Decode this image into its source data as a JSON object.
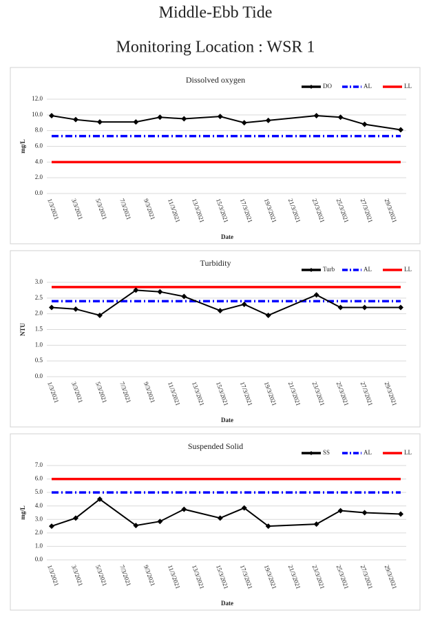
{
  "header": {
    "title": "Middle-Ebb Tide",
    "subtitle": "Monitoring Location : WSR 1"
  },
  "chart_data": [
    {
      "type": "line",
      "title": "Dissolved oxygen",
      "x_label": "Date",
      "y_label": "mg/L",
      "x": [
        "1/3/2021",
        "3/3/2021",
        "5/3/2021",
        "8/3/2021",
        "10/3/2021",
        "12/3/2021",
        "15/3/2021",
        "17/3/2021",
        "19/3/2021",
        "23/3/2021",
        "25/3/2021",
        "27/3/2021",
        "30/3/2021"
      ],
      "xlim": [
        "1/3/2021",
        "30/3/2021"
      ],
      "xticks": [
        "1/3/2021",
        "3/3/2021",
        "5/3/2021",
        "7/3/2021",
        "9/3/2021",
        "11/3/2021",
        "13/3/2021",
        "15/3/2021",
        "17/3/2021",
        "19/3/2021",
        "21/3/2021",
        "23/3/2021",
        "25/3/2021",
        "27/3/2021",
        "29/3/2021"
      ],
      "ylim": [
        0,
        12
      ],
      "yticks": [
        {
          "value": 0,
          "label": "0.0"
        },
        {
          "value": 2,
          "label": "2.0"
        },
        {
          "value": 4,
          "label": "4.0"
        },
        {
          "value": 6,
          "label": "6.0"
        },
        {
          "value": 8,
          "label": "8.0"
        },
        {
          "value": 10,
          "label": "10.0"
        },
        {
          "value": 12,
          "label": "12.0"
        }
      ],
      "grid": true,
      "legend": "top-right",
      "series": [
        {
          "name": "DO",
          "color": "#000000",
          "line_style": "solid",
          "marker": "diamond",
          "values": [
            9.9,
            9.4,
            9.1,
            9.1,
            9.7,
            9.5,
            9.8,
            9.0,
            9.3,
            9.9,
            9.7,
            8.8,
            8.1
          ]
        },
        {
          "name": "AL",
          "color": "#0000ff",
          "line_style": "dashdot",
          "marker": "none",
          "values": [
            7.3,
            7.3,
            7.3,
            7.3,
            7.3,
            7.3,
            7.3,
            7.3,
            7.3,
            7.3,
            7.3,
            7.3,
            7.3
          ]
        },
        {
          "name": "LL",
          "color": "#ff0000",
          "line_style": "solid",
          "marker": "none",
          "values": [
            4.0,
            4.0,
            4.0,
            4.0,
            4.0,
            4.0,
            4.0,
            4.0,
            4.0,
            4.0,
            4.0,
            4.0,
            4.0
          ]
        }
      ]
    },
    {
      "type": "line",
      "title": "Turbidity",
      "x_label": "Date",
      "y_label": "NTU",
      "x": [
        "1/3/2021",
        "3/3/2021",
        "5/3/2021",
        "8/3/2021",
        "10/3/2021",
        "12/3/2021",
        "15/3/2021",
        "17/3/2021",
        "19/3/2021",
        "23/3/2021",
        "25/3/2021",
        "27/3/2021",
        "30/3/2021"
      ],
      "xlim": [
        "1/3/2021",
        "30/3/2021"
      ],
      "xticks": [
        "1/3/2021",
        "3/3/2021",
        "5/3/2021",
        "7/3/2021",
        "9/3/2021",
        "11/3/2021",
        "13/3/2021",
        "15/3/2021",
        "17/3/2021",
        "19/3/2021",
        "21/3/2021",
        "23/3/2021",
        "25/3/2021",
        "27/3/2021",
        "29/3/2021"
      ],
      "ylim": [
        0,
        3
      ],
      "yticks": [
        {
          "value": 0,
          "label": "0.0"
        },
        {
          "value": 0.5,
          "label": "0.5"
        },
        {
          "value": 1,
          "label": "1.0"
        },
        {
          "value": 1.5,
          "label": "1.5"
        },
        {
          "value": 2,
          "label": "2.0"
        },
        {
          "value": 2.5,
          "label": "2.5"
        },
        {
          "value": 3,
          "label": "3.0"
        }
      ],
      "grid": true,
      "legend": "top-right",
      "series": [
        {
          "name": "Turb",
          "color": "#000000",
          "line_style": "solid",
          "marker": "diamond",
          "values": [
            2.2,
            2.15,
            1.95,
            2.75,
            2.7,
            2.55,
            2.1,
            2.3,
            1.95,
            2.6,
            2.2,
            2.2,
            2.2
          ]
        },
        {
          "name": "AL",
          "color": "#0000ff",
          "line_style": "dashdot",
          "marker": "none",
          "values": [
            2.4,
            2.4,
            2.4,
            2.4,
            2.4,
            2.4,
            2.4,
            2.4,
            2.4,
            2.4,
            2.4,
            2.4,
            2.4
          ]
        },
        {
          "name": "LL",
          "color": "#ff0000",
          "line_style": "solid",
          "marker": "none",
          "values": [
            2.85,
            2.85,
            2.85,
            2.85,
            2.85,
            2.85,
            2.85,
            2.85,
            2.85,
            2.85,
            2.85,
            2.85,
            2.85
          ]
        }
      ]
    },
    {
      "type": "line",
      "title": "Suspended Solid",
      "x_label": "Date",
      "y_label": "mg/L",
      "x": [
        "1/3/2021",
        "3/3/2021",
        "5/3/2021",
        "8/3/2021",
        "10/3/2021",
        "12/3/2021",
        "15/3/2021",
        "17/3/2021",
        "19/3/2021",
        "23/3/2021",
        "25/3/2021",
        "27/3/2021",
        "30/3/2021"
      ],
      "xlim": [
        "1/3/2021",
        "30/3/2021"
      ],
      "xticks": [
        "1/3/2021",
        "3/3/2021",
        "5/3/2021",
        "7/3/2021",
        "9/3/2021",
        "11/3/2021",
        "13/3/2021",
        "15/3/2021",
        "17/3/2021",
        "19/3/2021",
        "21/3/2021",
        "23/3/2021",
        "25/3/2021",
        "27/3/2021",
        "29/3/2021"
      ],
      "ylim": [
        0,
        7
      ],
      "yticks": [
        {
          "value": 0,
          "label": "0.0"
        },
        {
          "value": 1,
          "label": "1.0"
        },
        {
          "value": 2,
          "label": "2.0"
        },
        {
          "value": 3,
          "label": "3.0"
        },
        {
          "value": 4,
          "label": "4.0"
        },
        {
          "value": 5,
          "label": "5.0"
        },
        {
          "value": 6,
          "label": "6.0"
        },
        {
          "value": 7,
          "label": "7.0"
        }
      ],
      "grid": true,
      "legend": "top-right",
      "series": [
        {
          "name": "SS",
          "color": "#000000",
          "line_style": "solid",
          "marker": "diamond",
          "values": [
            2.5,
            3.1,
            4.5,
            2.55,
            2.85,
            3.75,
            3.1,
            3.85,
            2.5,
            2.65,
            3.65,
            3.5,
            3.4
          ]
        },
        {
          "name": "AL",
          "color": "#0000ff",
          "line_style": "dashdot",
          "marker": "none",
          "values": [
            5.0,
            5.0,
            5.0,
            5.0,
            5.0,
            5.0,
            5.0,
            5.0,
            5.0,
            5.0,
            5.0,
            5.0,
            5.0
          ]
        },
        {
          "name": "LL",
          "color": "#ff0000",
          "line_style": "solid",
          "marker": "none",
          "values": [
            6.0,
            6.0,
            6.0,
            6.0,
            6.0,
            6.0,
            6.0,
            6.0,
            6.0,
            6.0,
            6.0,
            6.0,
            6.0
          ]
        }
      ]
    }
  ]
}
